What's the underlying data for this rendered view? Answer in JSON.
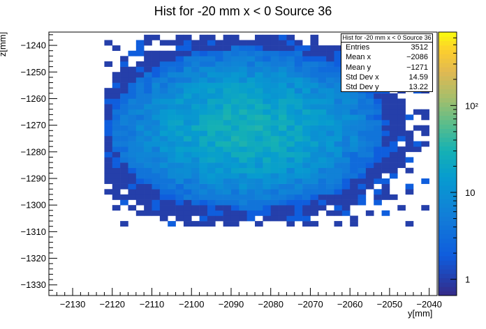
{
  "chart_data": {
    "type": "heatmap",
    "title": "Hist for -20 mm x < 0 Source 36",
    "xlabel": "y[mm]",
    "ylabel": "z[mm]",
    "xlim": [
      -2136,
      -2038
    ],
    "ylim": [
      -1334,
      -1235
    ],
    "x_ticks": [
      -2130,
      -2120,
      -2110,
      -2100,
      -2090,
      -2080,
      -2070,
      -2060,
      -2050,
      -2040
    ],
    "x_tick_labels": [
      "−2130",
      "−2120",
      "−2110",
      "−2100",
      "−2090",
      "−2080",
      "−2070",
      "−2060",
      "−2050",
      "−2040"
    ],
    "y_ticks": [
      -1240,
      -1250,
      -1260,
      -1270,
      -1280,
      -1290,
      -1300,
      -1310,
      -1320,
      -1330
    ],
    "y_tick_labels": [
      "−1240",
      "−1250",
      "−1260",
      "−1270",
      "−1280",
      "−1290",
      "−1300",
      "−1310",
      "−1320",
      "−1330"
    ],
    "colorbar": {
      "scale": "log",
      "range": [
        0.65,
        700
      ],
      "tick_labels": [
        "1",
        "10",
        "10²"
      ],
      "tick_values": [
        1,
        10,
        100
      ]
    },
    "bin_width": 2,
    "distribution": {
      "center_y": -2086,
      "center_z": -1271,
      "std_y": 14.59,
      "std_z": 13.22,
      "peak_count": 26
    },
    "stats": {
      "title": "Hist for -20 mm x < 0 Source 36",
      "rows": [
        {
          "label": "Entries",
          "value": "3512"
        },
        {
          "label": "Mean x",
          "value": "−2086"
        },
        {
          "label": "Mean y",
          "value": "−1271"
        },
        {
          "label": "Std Dev x",
          "value": "14.59"
        },
        {
          "label": "Std Dev y",
          "value": "13.22"
        }
      ]
    }
  }
}
